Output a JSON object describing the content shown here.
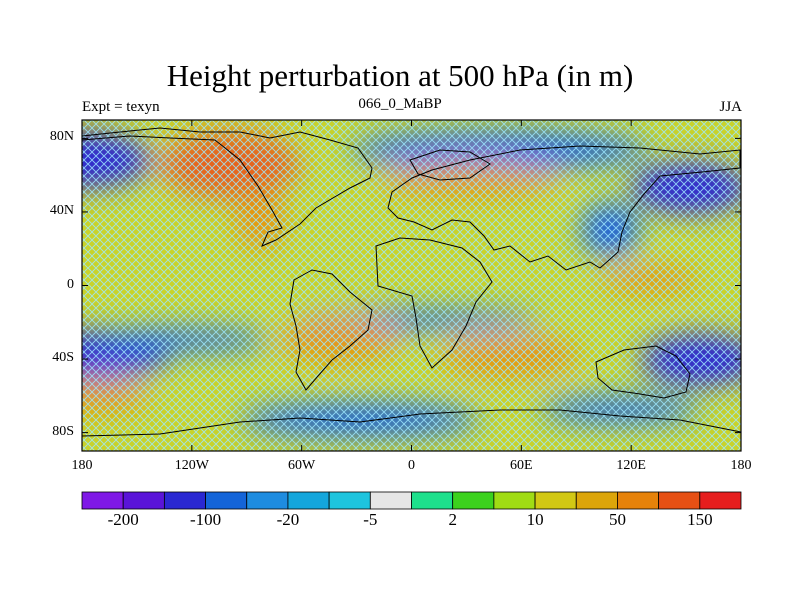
{
  "title": "Height perturbation at 500 hPa (in m)",
  "left_label": "Expt = texyn",
  "center_label": "066_0_MaBP",
  "right_label": "JJA",
  "lat_ticks": [
    "80N",
    "40N",
    "0",
    "40S",
    "80S"
  ],
  "lat_values": [
    80,
    40,
    0,
    -40,
    -80
  ],
  "lon_ticks": [
    "180",
    "120W",
    "60W",
    "0",
    "60E",
    "120E",
    "180"
  ],
  "lon_values": [
    -180,
    -120,
    -60,
    0,
    60,
    120,
    180
  ],
  "colorbar": {
    "colors": [
      "#7f18e6",
      "#5a14d8",
      "#2a28d2",
      "#1464d8",
      "#1e8ce0",
      "#14a6dc",
      "#1ec4de",
      "#e6e6e6",
      "#1ee08c",
      "#3cd21e",
      "#a0dc14",
      "#d2c814",
      "#dca50a",
      "#e6820a",
      "#e65014",
      "#e61e1e"
    ],
    "labels": [
      "-200",
      "-100",
      "-20",
      "-5",
      "2",
      "10",
      "50",
      "150"
    ]
  },
  "colors": {
    "map_base": "#c9d32a",
    "positive": "#e6960a",
    "strong_positive": "#e6641e",
    "negative": "#1e64dc",
    "strong_negative": "#2a28d2",
    "mesh": "#1ec4de"
  }
}
